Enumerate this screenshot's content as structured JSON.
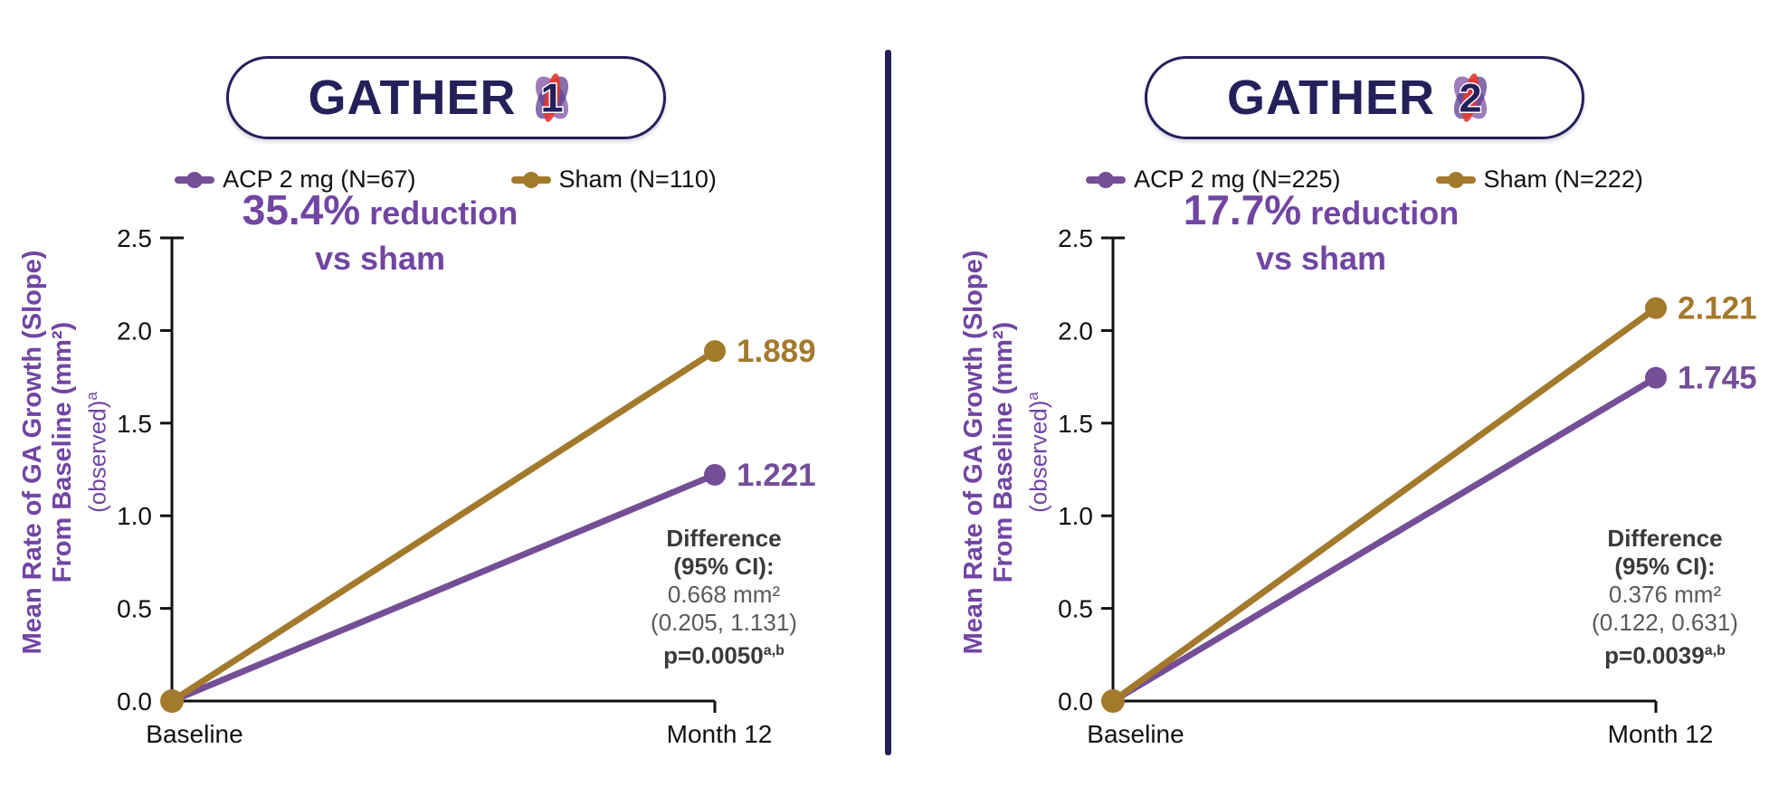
{
  "colors": {
    "purple_line": "#744E97",
    "purple_text": "#7245A2",
    "gold": "#A3792B",
    "navy": "#23205A",
    "axis_black": "#111111",
    "diff_bold": "#3A3A3A",
    "diff_normal": "#595959"
  },
  "charts": [
    {
      "logo_text": "GATHER",
      "logo_number": "1",
      "legend": [
        {
          "label": "ACP 2 mg (N=67)"
        },
        {
          "label": "Sham (N=110)"
        }
      ],
      "reduction": {
        "pct": "35.4%",
        "word": "reduction",
        "line2": "vs sham"
      },
      "ylabel": {
        "line1": "Mean Rate of GA Growth (Slope)",
        "line2": "From Baseline (mm²)",
        "line3": "(observed)",
        "line3_sup": "a"
      },
      "y_ticks": [
        "0.0",
        "0.5",
        "1.0",
        "1.5",
        "2.0",
        "2.5"
      ],
      "x_ticks": [
        "Baseline",
        "Month 12"
      ],
      "series": [
        {
          "name": "ACP 2 mg",
          "color": "#744E97",
          "values": [
            0.0,
            1.221
          ],
          "end_label": "1.221"
        },
        {
          "name": "Sham",
          "color": "#A3792B",
          "values": [
            0.0,
            1.889
          ],
          "end_label": "1.889"
        }
      ],
      "difference": {
        "title": "Difference",
        "ci_label": "(95% CI):",
        "value": "0.668 mm²",
        "ci": "(0.205, 1.131)",
        "p": "p=0.0050",
        "p_sup": "a,b"
      }
    },
    {
      "logo_text": "GATHER",
      "logo_number": "2",
      "legend": [
        {
          "label": "ACP 2 mg (N=225)"
        },
        {
          "label": "Sham (N=222)"
        }
      ],
      "reduction": {
        "pct": "17.7%",
        "word": "reduction",
        "line2": "vs sham"
      },
      "ylabel": {
        "line1": "Mean Rate of GA Growth (Slope)",
        "line2": "From Baseline (mm²)",
        "line3": "(observed)",
        "line3_sup": "a"
      },
      "y_ticks": [
        "0.0",
        "0.5",
        "1.0",
        "1.5",
        "2.0",
        "2.5"
      ],
      "x_ticks": [
        "Baseline",
        "Month 12"
      ],
      "series": [
        {
          "name": "ACP 2 mg",
          "color": "#744E97",
          "values": [
            0.0,
            1.745
          ],
          "end_label": "1.745"
        },
        {
          "name": "Sham",
          "color": "#A3792B",
          "values": [
            0.0,
            2.121
          ],
          "end_label": "2.121"
        }
      ],
      "difference": {
        "title": "Difference",
        "ci_label": "(95% CI):",
        "value": "0.376 mm²",
        "ci": "(0.122, 0.631)",
        "p": "p=0.0039",
        "p_sup": "a,b"
      }
    }
  ],
  "chart_data": [
    {
      "type": "line",
      "title": "GATHER 1",
      "x": [
        "Baseline",
        "Month 12"
      ],
      "series": [
        {
          "name": "ACP 2 mg (N=67)",
          "values": [
            0.0,
            1.221
          ],
          "color": "#744E97"
        },
        {
          "name": "Sham (N=110)",
          "values": [
            0.0,
            1.889
          ],
          "color": "#A3792B"
        }
      ],
      "ylabel": "Mean Rate of GA Growth (Slope) From Baseline (mm²) (observed)ᵃ",
      "ylim": [
        0,
        2.5
      ],
      "y_tick_step": 0.5,
      "grid": false,
      "legend_position": "top",
      "annotations": {
        "reduction": "35.4% reduction vs sham",
        "difference": "Difference (95% CI): 0.668 mm² (0.205, 1.131) p=0.0050 (a,b)"
      }
    },
    {
      "type": "line",
      "title": "GATHER 2",
      "x": [
        "Baseline",
        "Month 12"
      ],
      "series": [
        {
          "name": "ACP 2 mg (N=225)",
          "values": [
            0.0,
            1.745
          ],
          "color": "#744E97"
        },
        {
          "name": "Sham (N=222)",
          "values": [
            0.0,
            2.121
          ],
          "color": "#A3792B"
        }
      ],
      "ylabel": "Mean Rate of GA Growth (Slope) From Baseline (mm²) (observed)ᵃ",
      "ylim": [
        0,
        2.5
      ],
      "y_tick_step": 0.5,
      "grid": false,
      "legend_position": "top",
      "annotations": {
        "reduction": "17.7% reduction vs sham",
        "difference": "Difference (95% CI): 0.376 mm² (0.122, 0.631) p=0.0039 (a,b)"
      }
    }
  ]
}
